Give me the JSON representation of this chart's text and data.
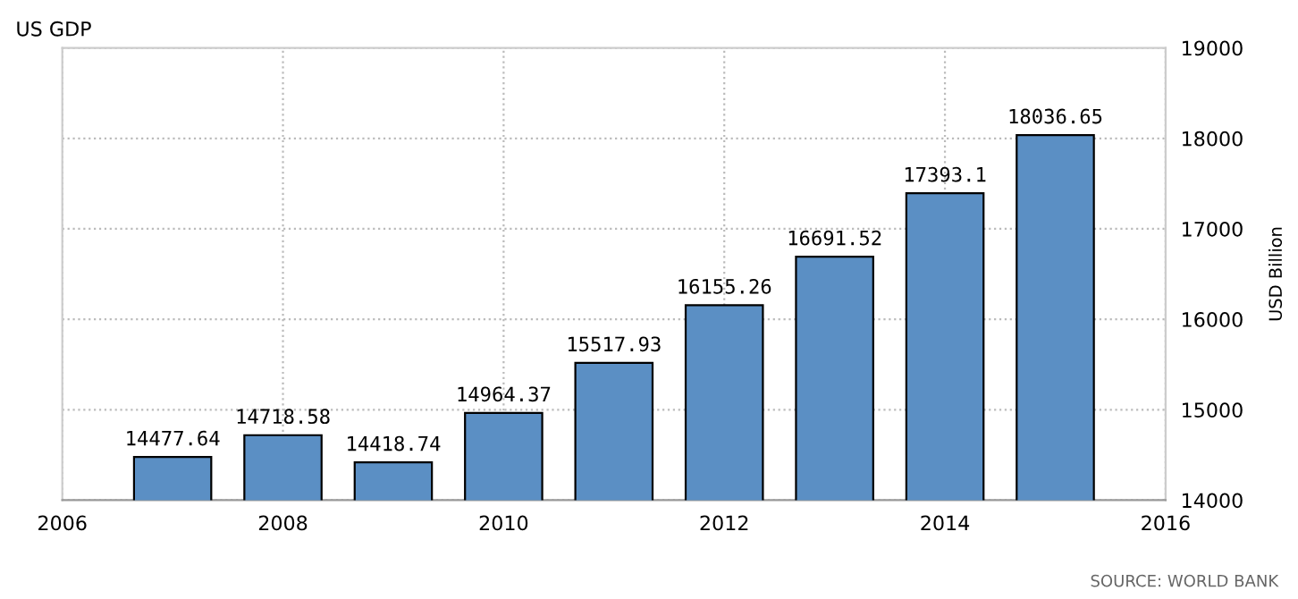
{
  "chart_data": {
    "type": "bar",
    "title": "US GDP",
    "ylabel": "USD Billion",
    "x": [
      2007,
      2008,
      2009,
      2010,
      2011,
      2012,
      2013,
      2014,
      2015
    ],
    "values": [
      14477.64,
      14718.58,
      14418.74,
      14964.37,
      15517.93,
      16155.26,
      16691.52,
      17393.1,
      18036.65
    ],
    "color": "#5b8fc4",
    "data_labels": true,
    "xlim": [
      2006,
      2016
    ],
    "xticks": [
      2006,
      2008,
      2010,
      2012,
      2014,
      2016
    ],
    "ylim": [
      14000,
      19000
    ],
    "yticks": [
      14000,
      15000,
      16000,
      17000,
      18000,
      19000
    ],
    "grid": true,
    "annotations": [
      "SOURCE: WORLD BANK"
    ]
  }
}
